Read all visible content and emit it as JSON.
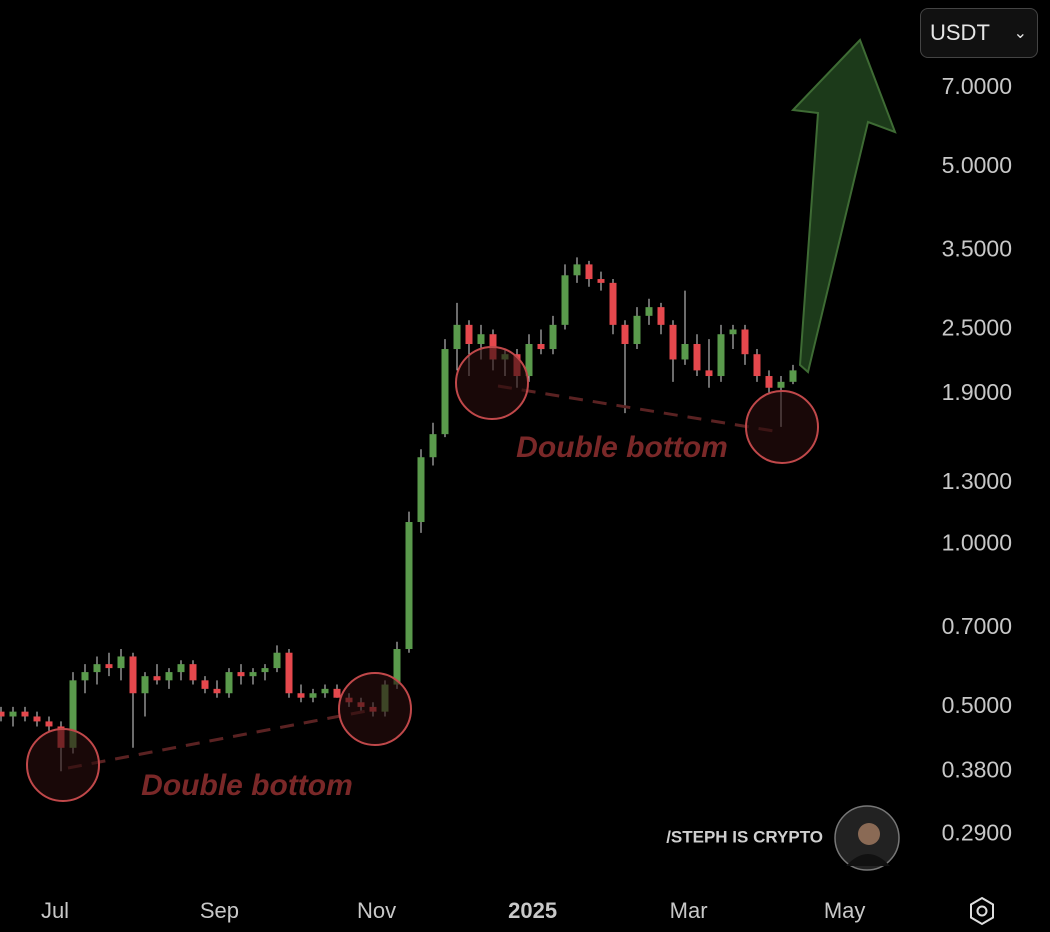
{
  "chart_data": {
    "type": "candlestick",
    "currency": "USDT",
    "watermark": "/STEPH IS CRYPTO",
    "log_scale": true,
    "grid": false,
    "up_color": "#5a9a4c",
    "down_color": "#e5484d",
    "open": [
      0.49,
      0.48,
      0.49,
      0.48,
      0.47,
      0.46,
      0.42,
      0.56,
      0.58,
      0.6,
      0.59,
      0.62,
      0.53,
      0.57,
      0.56,
      0.58,
      0.6,
      0.56,
      0.54,
      0.53,
      0.58,
      0.57,
      0.58,
      0.59,
      0.63,
      0.53,
      0.52,
      0.53,
      0.54,
      0.52,
      0.51,
      0.5,
      0.49,
      0.55,
      0.64,
      1.1,
      1.45,
      1.6,
      2.3,
      2.55,
      2.35,
      2.45,
      2.2,
      2.25,
      2.05,
      2.35,
      2.3,
      2.55,
      3.15,
      3.3,
      3.1,
      3.05,
      2.55,
      2.35,
      2.65,
      2.75,
      2.55,
      2.2,
      2.35,
      2.1,
      2.05,
      2.45,
      2.5,
      2.25,
      2.05,
      1.95,
      2.0
    ],
    "high": [
      0.5,
      0.5,
      0.5,
      0.49,
      0.48,
      0.47,
      0.58,
      0.6,
      0.62,
      0.63,
      0.64,
      0.63,
      0.58,
      0.6,
      0.59,
      0.61,
      0.61,
      0.57,
      0.56,
      0.59,
      0.6,
      0.59,
      0.6,
      0.65,
      0.64,
      0.55,
      0.54,
      0.55,
      0.55,
      0.53,
      0.52,
      0.51,
      0.56,
      0.66,
      1.15,
      1.5,
      1.68,
      2.4,
      2.8,
      2.6,
      2.55,
      2.5,
      2.3,
      2.3,
      2.45,
      2.5,
      2.65,
      3.3,
      3.4,
      3.35,
      3.2,
      3.1,
      2.6,
      2.75,
      2.85,
      2.8,
      2.6,
      2.95,
      2.45,
      2.4,
      2.55,
      2.55,
      2.55,
      2.3,
      2.1,
      2.05,
      2.15
    ],
    "low": [
      0.47,
      0.46,
      0.47,
      0.46,
      0.45,
      0.38,
      0.41,
      0.53,
      0.55,
      0.57,
      0.56,
      0.42,
      0.48,
      0.55,
      0.54,
      0.56,
      0.55,
      0.53,
      0.52,
      0.52,
      0.55,
      0.55,
      0.56,
      0.58,
      0.52,
      0.51,
      0.51,
      0.52,
      0.52,
      0.5,
      0.49,
      0.48,
      0.48,
      0.54,
      0.63,
      1.05,
      1.4,
      1.58,
      2.1,
      2.05,
      2.2,
      2.1,
      2.05,
      1.95,
      2.0,
      2.25,
      2.25,
      2.5,
      3.05,
      3.0,
      2.95,
      2.45,
      1.75,
      2.3,
      2.55,
      2.45,
      2.0,
      2.15,
      2.05,
      1.95,
      2.0,
      2.3,
      2.15,
      2.0,
      1.9,
      1.65,
      1.98
    ],
    "close": [
      0.48,
      0.49,
      0.48,
      0.47,
      0.46,
      0.42,
      0.56,
      0.58,
      0.6,
      0.59,
      0.62,
      0.53,
      0.57,
      0.56,
      0.58,
      0.6,
      0.56,
      0.54,
      0.53,
      0.58,
      0.57,
      0.58,
      0.59,
      0.63,
      0.53,
      0.52,
      0.53,
      0.54,
      0.52,
      0.51,
      0.5,
      0.49,
      0.55,
      0.64,
      1.1,
      1.45,
      1.6,
      2.3,
      2.55,
      2.35,
      2.45,
      2.2,
      2.25,
      2.05,
      2.35,
      2.3,
      2.55,
      3.15,
      3.3,
      3.1,
      3.05,
      2.55,
      2.35,
      2.65,
      2.75,
      2.55,
      2.2,
      2.35,
      2.1,
      2.05,
      2.45,
      2.5,
      2.25,
      2.05,
      1.95,
      2.0,
      2.1
    ],
    "xlim": [
      0,
      76
    ],
    "xticks": [
      {
        "value": 4.5,
        "label": "Jul"
      },
      {
        "value": 18.2,
        "label": "Sep"
      },
      {
        "value": 31.3,
        "label": "Nov"
      },
      {
        "value": 44.3,
        "label": "2025"
      },
      {
        "value": 57.3,
        "label": "Mar"
      },
      {
        "value": 70.3,
        "label": "May"
      }
    ],
    "ylim": [
      0.239,
      10.19
    ],
    "yticks": [
      {
        "value": 7,
        "label": "7.0000"
      },
      {
        "value": 5,
        "label": "5.0000"
      },
      {
        "value": 3.5,
        "label": "3.5000"
      },
      {
        "value": 2.5,
        "label": "2.5000"
      },
      {
        "value": 1.9,
        "label": "1.9000"
      },
      {
        "value": 1.3,
        "label": "1.3000"
      },
      {
        "value": 1,
        "label": "1.0000"
      },
      {
        "value": 0.7,
        "label": "0.7000"
      },
      {
        "value": 0.5,
        "label": "0.5000"
      },
      {
        "value": 0.38,
        "label": "0.3800"
      },
      {
        "value": 0.29,
        "label": "0.2900"
      }
    ],
    "annotations": [
      "Double bottom",
      "Double bottom"
    ]
  }
}
